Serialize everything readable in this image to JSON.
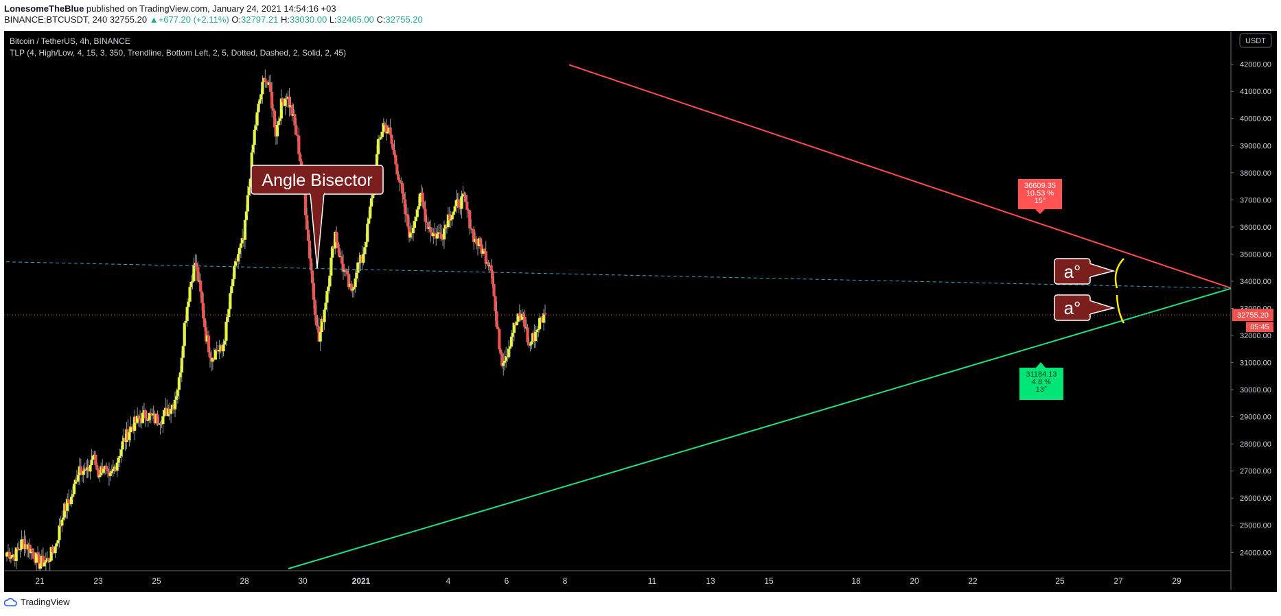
{
  "header": {
    "author": "LonesomeTheBlue",
    "published": "published on TradingView.com, January 24, 2021 14:54:16 +03",
    "symbol": "BINANCE:BTCUSDT, 240",
    "last": "32755.20",
    "change": "+677.20 (+2.11%)",
    "o_label": "O:",
    "o": "32797.21",
    "h_label": "H:",
    "h": "33030.00",
    "l_label": "L:",
    "l": "32465.00",
    "c_label": "C:",
    "c": "32755.20"
  },
  "chart_title": "Bitcoin / TetherUS, 4h, BINANCE",
  "indicator": "TLP (4, High/Low, 4, 15, 3, 350, Trendline, Bottom Left, 2, 5, Dotted, Dashed, 2, Solid, 2, 45)",
  "currency": "USDT",
  "price_label": "32755.20",
  "countdown": "05:45",
  "footer_brand": "TradingView",
  "colors": {
    "background": "#000000",
    "up_candle": "#e6f542",
    "down_candle": "#ef5350",
    "resistance": "#ff4a55",
    "support": "#22e07a",
    "bisector": "#3aa6c9",
    "callout": "#7a1e1e",
    "bracket": "#ffee00"
  },
  "chart_data": {
    "type": "candlestick",
    "title": "Bitcoin / TetherUS, 4h, BINANCE",
    "ylim": [
      23400,
      42700
    ],
    "y_ticks": [
      "24000.00",
      "25000.00",
      "26000.00",
      "27000.00",
      "28000.00",
      "29000.00",
      "30000.00",
      "31000.00",
      "32000.00",
      "33000.00",
      "34000.00",
      "35000.00",
      "36000.00",
      "37000.00",
      "38000.00",
      "39000.00",
      "40000.00",
      "41000.00",
      "42000.00"
    ],
    "x_ticks": [
      "21",
      "23",
      "25",
      "28",
      "30",
      "2021",
      "4",
      "6",
      "8",
      "11",
      "13",
      "15",
      "18",
      "20",
      "22",
      "25",
      "27",
      "29"
    ],
    "price_path": [
      [
        24000,
        0
      ],
      [
        23900,
        3
      ],
      [
        24400,
        6
      ],
      [
        24100,
        9
      ],
      [
        23600,
        12
      ],
      [
        23700,
        15
      ],
      [
        24200,
        18
      ],
      [
        25500,
        21
      ],
      [
        26000,
        24
      ],
      [
        27200,
        27
      ],
      [
        26900,
        30
      ],
      [
        27600,
        32
      ],
      [
        26900,
        34
      ],
      [
        27200,
        36
      ],
      [
        26600,
        38
      ],
      [
        27400,
        41
      ],
      [
        28000,
        43
      ],
      [
        28600,
        46
      ],
      [
        28900,
        49
      ],
      [
        29100,
        52
      ],
      [
        28900,
        55
      ],
      [
        29000,
        58
      ],
      [
        29300,
        60
      ],
      [
        29500,
        62
      ],
      [
        30300,
        64
      ],
      [
        32400,
        66
      ],
      [
        33800,
        68
      ],
      [
        34700,
        70
      ],
      [
        33500,
        72
      ],
      [
        32000,
        74
      ],
      [
        31200,
        76
      ],
      [
        31500,
        78
      ],
      [
        31400,
        80
      ],
      [
        32600,
        82
      ],
      [
        34100,
        84
      ],
      [
        35000,
        86
      ],
      [
        35500,
        88
      ],
      [
        37500,
        90
      ],
      [
        39500,
        92
      ],
      [
        40700,
        94
      ],
      [
        41600,
        96
      ],
      [
        40900,
        98
      ],
      [
        39500,
        100
      ],
      [
        40500,
        102
      ],
      [
        40900,
        104
      ],
      [
        40200,
        106
      ],
      [
        39200,
        108
      ],
      [
        37800,
        110
      ],
      [
        35500,
        112
      ],
      [
        33400,
        114
      ],
      [
        31800,
        116
      ],
      [
        33000,
        118
      ],
      [
        34400,
        120
      ],
      [
        35800,
        122
      ],
      [
        34800,
        124
      ],
      [
        34200,
        126
      ],
      [
        33500,
        128
      ],
      [
        34500,
        130
      ],
      [
        34800,
        132
      ],
      [
        35900,
        134
      ],
      [
        37300,
        136
      ],
      [
        39000,
        138
      ],
      [
        39800,
        140
      ],
      [
        39500,
        142
      ],
      [
        38600,
        144
      ],
      [
        37700,
        146
      ],
      [
        36500,
        148
      ],
      [
        35600,
        150
      ],
      [
        36600,
        152
      ],
      [
        37100,
        154
      ],
      [
        36200,
        156
      ],
      [
        35800,
        158
      ],
      [
        35700,
        160
      ],
      [
        35800,
        162
      ],
      [
        36400,
        164
      ],
      [
        36600,
        166
      ],
      [
        36900,
        168
      ],
      [
        37000,
        170
      ],
      [
        36200,
        172
      ],
      [
        35500,
        174
      ],
      [
        35300,
        176
      ],
      [
        34900,
        178
      ],
      [
        34600,
        180
      ],
      [
        32300,
        182
      ],
      [
        31100,
        184
      ],
      [
        31400,
        186
      ],
      [
        32200,
        188
      ],
      [
        32600,
        190
      ],
      [
        32700,
        192
      ],
      [
        31600,
        194
      ],
      [
        32000,
        196
      ],
      [
        32500,
        198
      ],
      [
        32755,
        200
      ]
    ],
    "tick_spacing": 3.92,
    "candle_width": 4.2,
    "resistance_line": {
      "from": [
        41980,
        829
      ],
      "to": [
        33740,
        1794
      ]
    },
    "support_line": {
      "from": [
        23400,
        420
      ],
      "to": [
        33740,
        1794
      ]
    },
    "bisector_line": {
      "from": [
        34720,
        0
      ],
      "to": [
        33740,
        1794
      ]
    },
    "current_price_line": 32755.2,
    "annotations": [
      {
        "label": "Angle Bisector",
        "kind": "callout"
      },
      {
        "label": "a°",
        "kind": "callout"
      },
      {
        "label": "a°",
        "kind": "callout"
      },
      {
        "label": "36609.35",
        "sub1": "10.53 %",
        "sub2": "15°",
        "kind": "upper-box"
      },
      {
        "label": "31184.13",
        "sub1": "4.8 %",
        "sub2": "13°",
        "kind": "lower-box"
      }
    ]
  }
}
